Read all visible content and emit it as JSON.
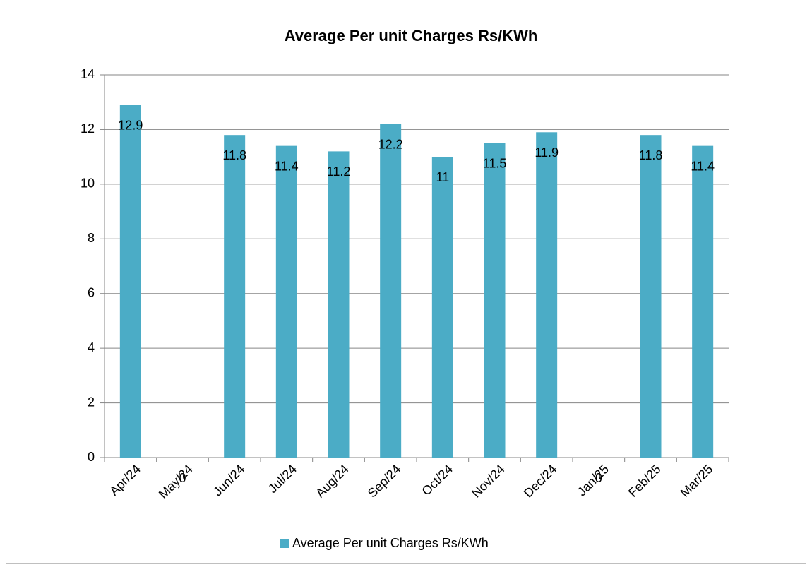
{
  "chart_data": {
    "type": "bar",
    "title": "Average Per unit Charges Rs/KWh",
    "categories": [
      "Apr/24",
      "May/24",
      "Jun/24",
      "Jul/24",
      "Aug/24",
      "Sep/24",
      "Oct/24",
      "Nov/24",
      "Dec/24",
      "Jan/25",
      "Feb/25",
      "Mar/25"
    ],
    "series": [
      {
        "name": "Average Per unit Charges Rs/KWh",
        "color": "#4bacc6",
        "values": [
          12.9,
          0,
          11.8,
          11.4,
          11.2,
          12.2,
          11,
          11.5,
          11.9,
          0,
          11.8,
          11.4
        ]
      }
    ],
    "ylim": [
      0,
      14
    ],
    "yticks": [
      0,
      2,
      4,
      6,
      8,
      10,
      12,
      14
    ],
    "grid": true,
    "legend": "bottom"
  }
}
